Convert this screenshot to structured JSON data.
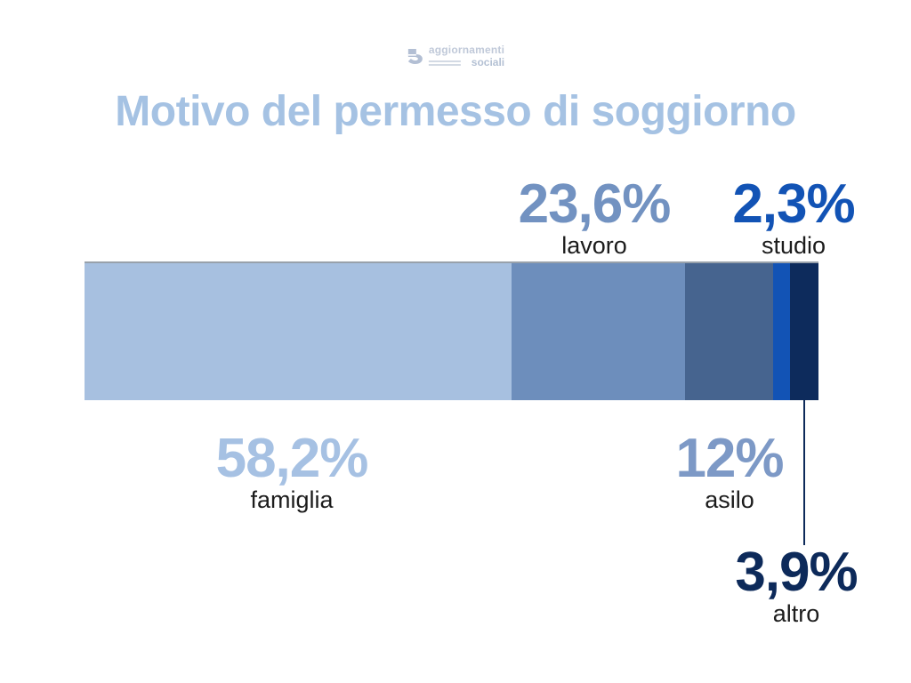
{
  "logo": {
    "name_top": "aggiornamenti",
    "name_bottom": "sociali",
    "color": "#bcc6d6"
  },
  "title": {
    "text": "Motivo del permesso di soggiorno",
    "color": "#a5c2e3"
  },
  "chart_data": {
    "type": "bar",
    "variant": "horizontal-stacked-percentage",
    "title": "Motivo del permesso di soggiorno",
    "categories": [
      "famiglia",
      "lavoro",
      "asilo",
      "studio",
      "altro"
    ],
    "values": [
      58.2,
      23.6,
      12,
      2.3,
      3.9
    ],
    "value_labels": [
      "58,2%",
      "23,6%",
      "12%",
      "2,3%",
      "3,9%"
    ],
    "segment_colors": [
      "#a7c0e0",
      "#6d8ebc",
      "#46648f",
      "#1253b5",
      "#0d2b5c"
    ],
    "label_colors": [
      "#a6c1e3",
      "#7292c1",
      "#7d99c6",
      "#1253b5",
      "#0d2a5a"
    ],
    "category_label_color": "#1c1c1c",
    "total": 100,
    "unit": "%",
    "legend": "none",
    "axes": "none",
    "annotations": [
      {
        "category": "famiglia",
        "value_label": "58,2%",
        "position": "below-bar"
      },
      {
        "category": "lavoro",
        "value_label": "23,6%",
        "position": "above-bar"
      },
      {
        "category": "asilo",
        "value_label": "12%",
        "position": "below-bar"
      },
      {
        "category": "studio",
        "value_label": "2,3%",
        "position": "above-bar"
      },
      {
        "category": "altro",
        "value_label": "3,9%",
        "position": "below-bar-with-leader-line"
      }
    ]
  }
}
